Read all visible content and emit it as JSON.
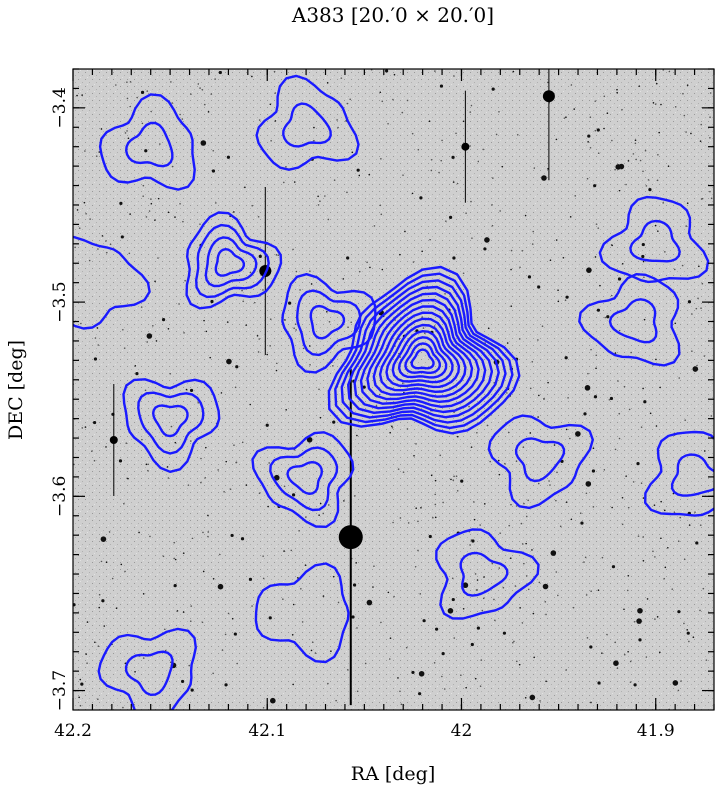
{
  "chart_data": {
    "type": "contour",
    "title": "A383  [20.′0 × 20.′0]",
    "xlabel": "RA [deg]",
    "ylabel": "DEC [deg]",
    "x_axis": {
      "reversed": true,
      "range": [
        42.2,
        41.87
      ],
      "ticks": [
        42.2,
        42.1,
        42.0,
        41.9
      ],
      "tick_labels": [
        "42.2",
        "42.1",
        "42",
        "41.9"
      ]
    },
    "y_axis": {
      "range": [
        -3.71,
        -3.38
      ],
      "ticks": [
        -3.4,
        -3.5,
        -3.6,
        -3.7
      ],
      "tick_labels": [
        "−3.4",
        "−3.5",
        "−3.6",
        "−3.7"
      ]
    },
    "background": "grayscale optical sky image with stars and galaxies",
    "contour_color": "#1a1aff",
    "peak": {
      "ra": 42.02,
      "dec": -3.53
    },
    "contour_groups": [
      {
        "center": [
          42.02,
          -3.53
        ],
        "levels": [
          0.004,
          0.008,
          0.012,
          0.016,
          0.02,
          0.024,
          0.028,
          0.032,
          0.036,
          0.04,
          0.044,
          0.048,
          0.052,
          0.056
        ]
      },
      {
        "center": [
          42.12,
          -3.48
        ],
        "levels": [
          0.01,
          0.02,
          0.03,
          0.04
        ]
      },
      {
        "center": [
          42.07,
          -3.51
        ],
        "levels": [
          0.012,
          0.024,
          0.036
        ]
      },
      {
        "center": [
          42.15,
          -3.56
        ],
        "levels": [
          0.012,
          0.024,
          0.036
        ]
      },
      {
        "center": [
          42.08,
          -3.59
        ],
        "levels": [
          0.012,
          0.024,
          0.036
        ]
      },
      {
        "center": [
          41.91,
          -3.51
        ],
        "levels": [
          0.012,
          0.024
        ]
      },
      {
        "center": [
          41.9,
          -3.47
        ],
        "levels": [
          0.01,
          0.02
        ]
      },
      {
        "center": [
          41.88,
          -3.59
        ],
        "levels": [
          0.012,
          0.024
        ]
      },
      {
        "center": [
          41.99,
          -3.64
        ],
        "levels": [
          0.012,
          0.024
        ]
      },
      {
        "center": [
          41.96,
          -3.58
        ],
        "levels": [
          0.012,
          0.024
        ]
      },
      {
        "center": [
          42.16,
          -3.69
        ],
        "levels": [
          0.012,
          0.024
        ]
      },
      {
        "center": [
          42.08,
          -3.66
        ],
        "levels": [
          0.012
        ]
      },
      {
        "center": [
          42.16,
          -3.42
        ],
        "levels": [
          0.012,
          0.024
        ]
      },
      {
        "center": [
          42.08,
          -3.41
        ],
        "levels": [
          0.012,
          0.024
        ]
      },
      {
        "center": [
          42.19,
          -3.49
        ],
        "levels": [
          0.012
        ]
      }
    ]
  }
}
